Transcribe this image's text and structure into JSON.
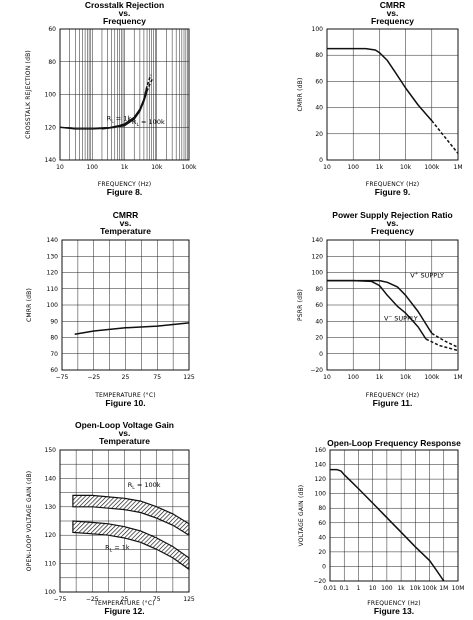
{
  "chart_data": [
    {
      "type": "line",
      "title_lines": [
        "Crosstalk Rejection",
        "vs.",
        "Frequency"
      ],
      "xlabel": "FREQUENCY (Hz)",
      "ylabel": "CROSSTALK REJECTION (dB)",
      "caption": "Figure 8.",
      "xscale": "log",
      "xlim": [
        10,
        100000
      ],
      "ylim": [
        140,
        60
      ],
      "yinverted": true,
      "x_ticks": [
        10,
        100,
        1000,
        10000,
        100000
      ],
      "x_tick_labels": [
        "10",
        "100",
        "1k",
        "10k",
        "100k"
      ],
      "y_ticks": [
        60,
        80,
        100,
        120,
        140
      ],
      "y_tick_labels": [
        "60",
        "80",
        "100",
        "120",
        "140"
      ],
      "x_grid": [
        10,
        20,
        30,
        40,
        50,
        60,
        70,
        80,
        90,
        100,
        200,
        300,
        400,
        500,
        600,
        700,
        800,
        900,
        1000,
        2000,
        3000,
        4000,
        5000,
        6000,
        7000,
        8000,
        9000,
        10000,
        20000,
        30000,
        40000,
        50000,
        60000,
        70000,
        80000,
        90000,
        100000
      ],
      "y_grid": [
        60,
        80,
        100,
        120,
        140
      ],
      "grid": true,
      "series": [
        {
          "name": "RL = 1k",
          "style": "solid",
          "x": [
            10,
            30,
            100,
            300,
            700,
            1000,
            2000,
            3000,
            4000,
            5000
          ],
          "y": [
            120,
            121,
            121,
            120.5,
            119,
            118,
            114,
            109,
            103,
            95
          ]
        },
        {
          "name": "RL = 100k",
          "style": "solid",
          "x": [
            200,
            500,
            1000,
            2000,
            3000,
            4000,
            5000
          ],
          "y": [
            121,
            120,
            119,
            115,
            110,
            104,
            98
          ]
        },
        {
          "style": "dashed",
          "x": [
            4000,
            5000,
            6500
          ],
          "y": [
            103,
            95,
            88
          ]
        },
        {
          "style": "dashed",
          "x": [
            5000,
            6000,
            7500
          ],
          "y": [
            98,
            94,
            90
          ]
        }
      ],
      "annotations": [
        {
          "label": "R",
          "sub": "L",
          "rest": " = 1k",
          "x": 280,
          "y": 116
        },
        {
          "label": "R",
          "sub": "L",
          "rest": " = 100k",
          "x": 1700,
          "y": 118
        }
      ]
    },
    {
      "type": "line",
      "title_lines": [
        "CMRR",
        "vs.",
        "Frequency"
      ],
      "xlabel": "FREQUENCY (Hz)",
      "ylabel": "CMRR (dB)",
      "caption": "Figure 9.",
      "xscale": "log",
      "xlim": [
        10,
        1000000
      ],
      "ylim": [
        0,
        100
      ],
      "x_ticks": [
        10,
        100,
        1000,
        10000,
        100000,
        1000000
      ],
      "x_tick_labels": [
        "10",
        "100",
        "1k",
        "10k",
        "100k",
        "1M"
      ],
      "y_ticks": [
        0,
        20,
        40,
        60,
        80,
        100
      ],
      "y_tick_labels": [
        "0",
        "20",
        "40",
        "60",
        "80",
        "100"
      ],
      "x_grid": [
        10,
        100,
        1000,
        10000,
        100000,
        1000000
      ],
      "y_grid": [
        0,
        20,
        40,
        60,
        80,
        100
      ],
      "grid": true,
      "series": [
        {
          "style": "solid",
          "x": [
            10,
            100,
            300,
            700,
            1000,
            2000,
            4000,
            10000,
            30000,
            100000
          ],
          "y": [
            85,
            85,
            85,
            84,
            82,
            76,
            67,
            55,
            42,
            30
          ]
        },
        {
          "style": "dashed",
          "x": [
            100000,
            300000,
            1000000
          ],
          "y": [
            30,
            18,
            5
          ]
        }
      ],
      "annotations": []
    },
    {
      "type": "line",
      "title_lines": [
        "CMRR",
        "vs.",
        "Temperature"
      ],
      "xlabel": "TEMPERATURE (°C)",
      "ylabel": "CMRR (dB)",
      "caption": "Figure 10.",
      "xscale": "linear",
      "xlim": [
        -75,
        125
      ],
      "ylim": [
        60,
        140
      ],
      "x_ticks": [
        -75,
        -25,
        25,
        75,
        125
      ],
      "x_tick_labels": [
        "−75",
        "−25",
        "25",
        "75",
        "125"
      ],
      "y_ticks": [
        60,
        70,
        80,
        90,
        100,
        110,
        120,
        130,
        140
      ],
      "y_tick_labels": [
        "60",
        "70",
        "80",
        "90",
        "100",
        "110",
        "120",
        "130",
        "140"
      ],
      "x_grid": [
        -75,
        -50,
        -25,
        0,
        25,
        50,
        75,
        100,
        125
      ],
      "y_grid": [
        60,
        70,
        80,
        90,
        100,
        110,
        120,
        130,
        140
      ],
      "grid": true,
      "series": [
        {
          "style": "solid",
          "x": [
            -55,
            -25,
            0,
            25,
            75,
            125
          ],
          "y": [
            82,
            84,
            85,
            86,
            87,
            89
          ]
        }
      ],
      "annotations": []
    },
    {
      "type": "line",
      "title_lines": [
        "Power Supply Rejection Ratio",
        "vs.",
        "Frequency"
      ],
      "xlabel": "FREQUENCY (Hz)",
      "ylabel": "PSRR (dB)",
      "caption": "Figure 11.",
      "xscale": "log",
      "xlim": [
        10,
        1000000
      ],
      "ylim": [
        -20,
        140
      ],
      "x_ticks": [
        10,
        100,
        1000,
        10000,
        100000,
        1000000
      ],
      "x_tick_labels": [
        "10",
        "100",
        "1k",
        "10k",
        "100k",
        "1M"
      ],
      "y_ticks": [
        -20,
        0,
        20,
        40,
        60,
        80,
        100,
        120,
        140
      ],
      "y_tick_labels": [
        "−20",
        "0",
        "20",
        "40",
        "60",
        "80",
        "100",
        "120",
        "140"
      ],
      "x_grid": [
        10,
        100,
        1000,
        10000,
        100000,
        1000000
      ],
      "y_grid": [
        -20,
        0,
        20,
        40,
        60,
        80,
        100,
        120,
        140
      ],
      "grid": true,
      "series": [
        {
          "name": "V+ SUPPLY",
          "style": "solid",
          "x": [
            10,
            100,
            1000,
            2000,
            5000,
            10000,
            30000,
            100000
          ],
          "y": [
            90,
            90,
            90,
            88,
            82,
            72,
            52,
            25
          ]
        },
        {
          "name": "V− SUPPLY",
          "style": "solid",
          "x": [
            10,
            100,
            500,
            1000,
            2000,
            5000,
            10000,
            30000,
            60000
          ],
          "y": [
            90,
            90,
            89,
            84,
            72,
            58,
            50,
            33,
            18
          ]
        },
        {
          "style": "dashed",
          "x": [
            100000,
            300000,
            1000000
          ],
          "y": [
            25,
            16,
            8
          ]
        },
        {
          "style": "dashed",
          "x": [
            60000,
            200000,
            1000000
          ],
          "y": [
            18,
            10,
            4
          ]
        }
      ],
      "annotations": [
        {
          "label": "V",
          "sup": "+",
          "rest": " SUPPLY",
          "x": 15000,
          "y": 94
        },
        {
          "label": "V",
          "sup": "−",
          "rest": " SUPPLY",
          "x": 1500,
          "y": 41
        }
      ]
    },
    {
      "type": "area",
      "title_lines": [
        "Open-Loop Voltage Gain",
        "vs.",
        "Temperature"
      ],
      "xlabel": "TEMPERATURE (°C)",
      "ylabel": "OPEN-LOOP VOLTAGE GAIN (dB)",
      "caption": "Figure 12.",
      "xscale": "linear",
      "xlim": [
        -75,
        125
      ],
      "ylim": [
        100,
        150
      ],
      "x_ticks": [
        -75,
        -25,
        25,
        75,
        125
      ],
      "x_tick_labels": [
        "−75",
        "−25",
        "25",
        "75",
        "125"
      ],
      "y_ticks": [
        100,
        110,
        120,
        130,
        140,
        150
      ],
      "y_tick_labels": [
        "100",
        "110",
        "120",
        "130",
        "140",
        "150"
      ],
      "x_grid": [
        -75,
        -50,
        -25,
        0,
        25,
        50,
        75,
        100,
        125
      ],
      "y_grid": [
        100,
        105,
        110,
        115,
        120,
        125,
        130,
        135,
        140,
        145,
        150
      ],
      "grid": true,
      "bands": [
        {
          "name": "RL = 100k",
          "x": [
            -55,
            -25,
            0,
            25,
            50,
            75,
            100,
            125
          ],
          "upper": [
            134,
            134,
            133.5,
            133,
            132,
            130,
            127.5,
            124
          ],
          "lower": [
            130,
            130,
            129.5,
            129,
            128,
            126,
            123.5,
            120
          ]
        },
        {
          "name": "RL = 1k",
          "x": [
            -55,
            -25,
            0,
            25,
            50,
            75,
            100,
            125
          ],
          "upper": [
            125,
            124.5,
            124,
            123,
            121.5,
            119,
            116,
            112
          ],
          "lower": [
            121,
            120.5,
            120,
            119,
            117.5,
            115,
            112,
            108
          ]
        }
      ],
      "annotations": [
        {
          "label": "R",
          "sub": "L",
          "rest": " = 100k",
          "x": 30,
          "y": 137
        },
        {
          "label": "R",
          "sub": "L",
          "rest": " = 1k",
          "x": -5,
          "y": 115
        }
      ]
    },
    {
      "type": "line",
      "title_lines": [
        "Open-Loop Frequency Response"
      ],
      "xlabel": "FREQUENCY (Hz)",
      "ylabel": "VOLTAGE GAIN (dB)",
      "caption": "Figure 13.",
      "xscale": "log",
      "xlim": [
        0.01,
        10000000
      ],
      "ylim": [
        -20,
        160
      ],
      "x_ticks": [
        0.01,
        0.1,
        1,
        10,
        100,
        1000,
        10000,
        100000,
        1000000,
        10000000
      ],
      "x_tick_labels": [
        "0.01",
        "0.1",
        "1",
        "10",
        "100",
        "1k",
        "10k",
        "100k",
        "1M",
        "10M"
      ],
      "y_ticks": [
        -20,
        0,
        20,
        40,
        60,
        80,
        100,
        120,
        140,
        160
      ],
      "y_tick_labels": [
        "−20",
        "0",
        "20",
        "40",
        "60",
        "80",
        "100",
        "120",
        "140",
        "160"
      ],
      "x_grid": [
        0.01,
        0.1,
        1,
        10,
        100,
        1000,
        10000,
        100000,
        1000000,
        10000000
      ],
      "y_grid": [
        -20,
        0,
        20,
        40,
        60,
        80,
        100,
        120,
        140,
        160
      ],
      "grid": true,
      "series": [
        {
          "style": "solid",
          "x": [
            0.01,
            0.03,
            0.06,
            0.1,
            0.3,
            1,
            10,
            100,
            1000,
            10000,
            100000,
            300000,
            1000000
          ],
          "y": [
            133,
            133,
            131,
            126,
            117,
            107,
            87,
            67,
            47,
            27,
            8,
            -5,
            -20
          ]
        }
      ],
      "annotations": []
    }
  ]
}
